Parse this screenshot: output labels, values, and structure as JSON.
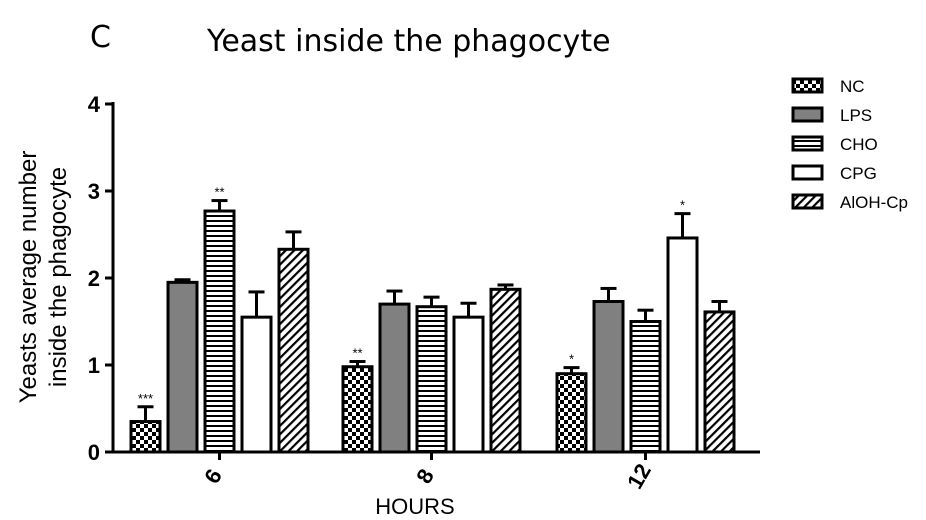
{
  "chart_data": {
    "type": "bar",
    "panel_label": "C",
    "title": "Yeast inside the phagocyte",
    "xlabel": "HOURS",
    "ylabel_lines": [
      "Yeasts average number",
      "inside the phagocyte"
    ],
    "ylim": [
      0,
      4
    ],
    "yticks": [
      "0",
      "1",
      "2",
      "3",
      "4"
    ],
    "categories": [
      "6",
      "8",
      "12"
    ],
    "legend_position": "top-right",
    "series": [
      {
        "name": "NC",
        "pattern": "checker",
        "values": [
          0.35,
          0.98,
          0.9
        ],
        "errors": [
          0.17,
          0.06,
          0.07
        ],
        "annotations": [
          "***",
          "**",
          "*"
        ]
      },
      {
        "name": "LPS",
        "pattern": "gray",
        "values": [
          1.95,
          1.7,
          1.73
        ],
        "errors": [
          0.03,
          0.15,
          0.15
        ],
        "annotations": [
          "",
          "",
          ""
        ]
      },
      {
        "name": "CHO",
        "pattern": "hstripe",
        "values": [
          2.77,
          1.67,
          1.5
        ],
        "errors": [
          0.12,
          0.11,
          0.13
        ],
        "annotations": [
          "**",
          "",
          ""
        ]
      },
      {
        "name": "CPG",
        "pattern": "white",
        "values": [
          1.55,
          1.55,
          2.46
        ],
        "errors": [
          0.29,
          0.16,
          0.28
        ],
        "annotations": [
          "",
          "",
          "*"
        ]
      },
      {
        "name": "AlOH-Cp",
        "pattern": "diag",
        "values": [
          2.33,
          1.87,
          1.61
        ],
        "errors": [
          0.2,
          0.05,
          0.12
        ],
        "annotations": [
          "",
          "",
          ""
        ]
      }
    ],
    "grid": false
  }
}
